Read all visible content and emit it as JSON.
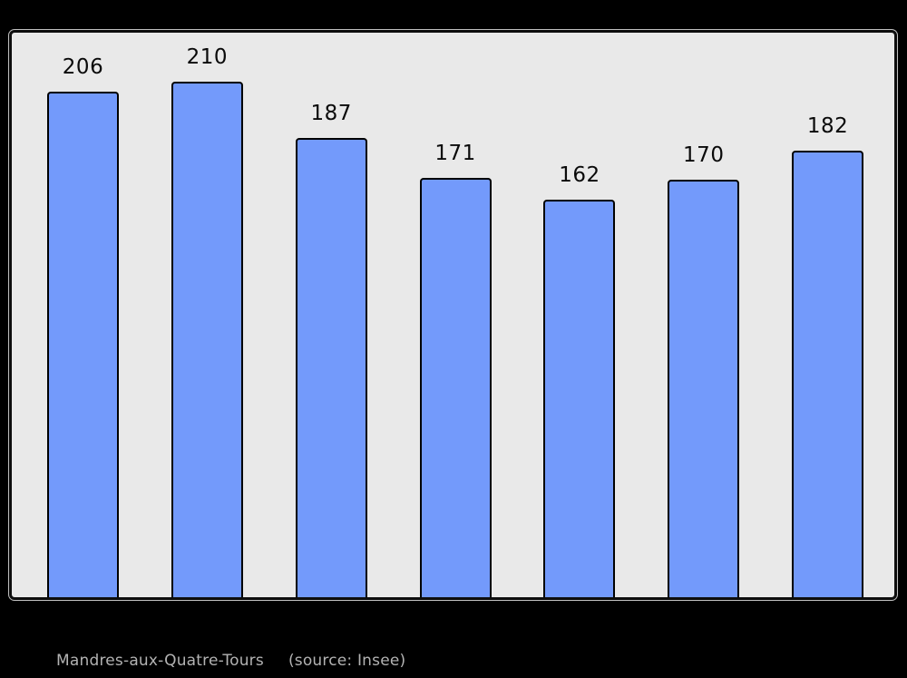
{
  "page": {
    "background": "#000000"
  },
  "chart_data": {
    "type": "bar",
    "values": [
      206,
      210,
      187,
      171,
      162,
      170,
      182
    ],
    "data_labels": [
      "206",
      "210",
      "187",
      "171",
      "162",
      "170",
      "182"
    ],
    "categories": [
      "",
      "",
      "",
      "",
      "",
      "",
      ""
    ],
    "title": "",
    "xlabel": "",
    "ylabel": "",
    "ylim": [
      0,
      230
    ],
    "grid": false,
    "legend": false,
    "bar_color": "#739afb",
    "bar_border_color": "#000000",
    "label_color": "#0a0a0a",
    "plot_background": "#e9e9e9",
    "plot_border_color": "#0d0d0d"
  },
  "caption": {
    "commune": "Mandres-aux-Quatre-Tours",
    "source": "(source: Insee)",
    "color": "#b3b3b3"
  }
}
